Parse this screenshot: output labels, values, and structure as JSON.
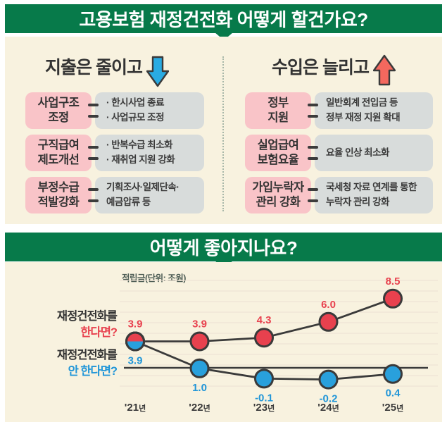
{
  "banner1": {
    "text": "고용보험 재정건전화 어떻게 할건가요?"
  },
  "banner2": {
    "text": "어떻게 좋아지나요?"
  },
  "colors": {
    "green": "#077a4a",
    "cream": "#f8f2df",
    "pink": "#f9c4c8",
    "gray_box": "#d8dcdb",
    "dark": "#3a3a3a",
    "red": "#e8414e",
    "blue": "#29a0dc",
    "blue_text": "#2196d8",
    "arrow_blue": "#29abe2",
    "arrow_red": "#f4685e"
  },
  "sections": {
    "spend": {
      "heading": "지출은 줄이고",
      "arrow_icon": "down-arrow",
      "rows": [
        {
          "label": [
            "사업구조",
            "조정"
          ],
          "desc": [
            "· 한시사업 종료",
            "· 사업규모 조정"
          ]
        },
        {
          "label": [
            "구직급여",
            "제도개선"
          ],
          "desc": [
            "· 반복수급 최소화",
            "· 재취업 지원 강화"
          ]
        },
        {
          "label": [
            "부정수급",
            "적발강화"
          ],
          "desc": [
            "기획조사·일제단속·",
            "예금압류 등"
          ]
        }
      ]
    },
    "income": {
      "heading": "수입은 늘리고",
      "arrow_icon": "up-arrow",
      "rows": [
        {
          "label": [
            "정부",
            "지원"
          ],
          "desc": [
            "일반회계 전입금 등",
            "정부 재정 지원 확대"
          ]
        },
        {
          "label": [
            "실업급여",
            "보험요율"
          ],
          "desc": [
            "요율 인상 최소화"
          ]
        },
        {
          "label": [
            "가입누락자",
            "관리 강화"
          ],
          "desc": [
            "국세청 자료 연계를 통한",
            "누락자 관리 강화"
          ]
        }
      ]
    }
  },
  "chart_data": {
    "type": "line",
    "title": "적립금(단위: 조원)",
    "x": [
      "'21년",
      "'22년",
      "'23년",
      "'24년",
      "'25년"
    ],
    "series": [
      {
        "name": "재정건전화를 한다면?",
        "color": "#e8414e",
        "label_color": "#e8414e",
        "values": [
          3.9,
          3.9,
          4.3,
          6.0,
          8.5
        ]
      },
      {
        "name": "재정건전화를 안 한다면?",
        "color": "#29a0dc",
        "label_color": "#2196d8",
        "values": [
          3.9,
          1.0,
          -0.1,
          -0.2,
          0.4
        ]
      }
    ],
    "legend": [
      {
        "prefix": "재정건전화를",
        "suffix": "한다면?",
        "color": "#e8414e"
      },
      {
        "prefix": "재정건전화를",
        "suffix": "안 한다면?",
        "color": "#2196d8"
      }
    ],
    "grid": true,
    "baseline": true,
    "legend_position": "left",
    "ylim": [
      -1.5,
      9.5
    ]
  }
}
